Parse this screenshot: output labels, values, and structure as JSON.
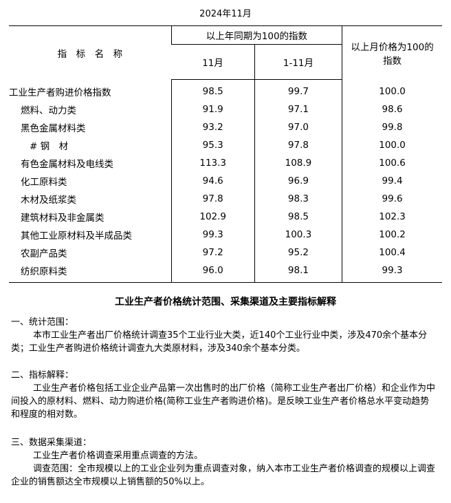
{
  "title": "2024年11月",
  "table": {
    "header": {
      "name": "指　标　名　称",
      "yoy": "以上年同期为100的指数",
      "m": "11月",
      "ytd": "1-11月",
      "mom": "以上月价格为100的指数"
    },
    "rows": [
      {
        "name": "工业生产者购进价格指数",
        "m": "98.5",
        "ytd": "99.7",
        "mom": "100.0",
        "level": 0
      },
      {
        "name": "燃料、动力类",
        "m": "91.9",
        "ytd": "97.1",
        "mom": "98.6",
        "level": 1
      },
      {
        "name": "黑色金属材料类",
        "m": "93.2",
        "ytd": "97.0",
        "mom": "99.8",
        "level": 1
      },
      {
        "name": "# 钢　材",
        "m": "95.3",
        "ytd": "97.8",
        "mom": "100.0",
        "level": 2
      },
      {
        "name": "有色金属材料及电线类",
        "m": "113.3",
        "ytd": "108.9",
        "mom": "100.6",
        "level": 1
      },
      {
        "name": "化工原料类",
        "m": "94.6",
        "ytd": "96.9",
        "mom": "99.4",
        "level": 1
      },
      {
        "name": "木材及纸浆类",
        "m": "97.8",
        "ytd": "98.3",
        "mom": "99.6",
        "level": 1
      },
      {
        "name": "建筑材料及非金属类",
        "m": "102.9",
        "ytd": "98.5",
        "mom": "102.3",
        "level": 1
      },
      {
        "name": "其他工业原材料及半成品类",
        "m": "99.3",
        "ytd": "100.3",
        "mom": "100.2",
        "level": 1
      },
      {
        "name": "农副产品类",
        "m": "97.2",
        "ytd": "95.2",
        "mom": "100.4",
        "level": 1
      },
      {
        "name": "纺织原料类",
        "m": "96.0",
        "ytd": "98.1",
        "mom": "99.3",
        "level": 1
      }
    ]
  },
  "notes": {
    "title": "工业生产者价格统计范围、采集渠道及主要指标解释",
    "s1_head": "一、统计范围：",
    "s1_p1": "本市工业生产者出厂价格统计调查35个工业行业大类，近140个工业行业中类，涉及470余个基本分类；工业生产者购进价格统计调查九大类原材料，涉及340余个基本分类。",
    "s2_head": "二、指标解释：",
    "s2_p1": "工业生产者价格包括工业企业产品第一次出售时的出厂价格（简称工业生产者出厂价格）和企业作为中间投入的原材料、燃料、动力购进价格(简称工业生产者购进价格)。是反映工业生产者价格总水平变动趋势和程度的相对数。",
    "s3_head": "三、数据采集渠道：",
    "s3_p1": "工业生产者价格调查采用重点调查的方法。",
    "s3_p2": "调查范围：全市规模以上的工业企业列为重点调查对象，纳入本市工业生产者价格调查的规模以上调查企业的销售额达全市规模以上销售额的50%以上。"
  }
}
